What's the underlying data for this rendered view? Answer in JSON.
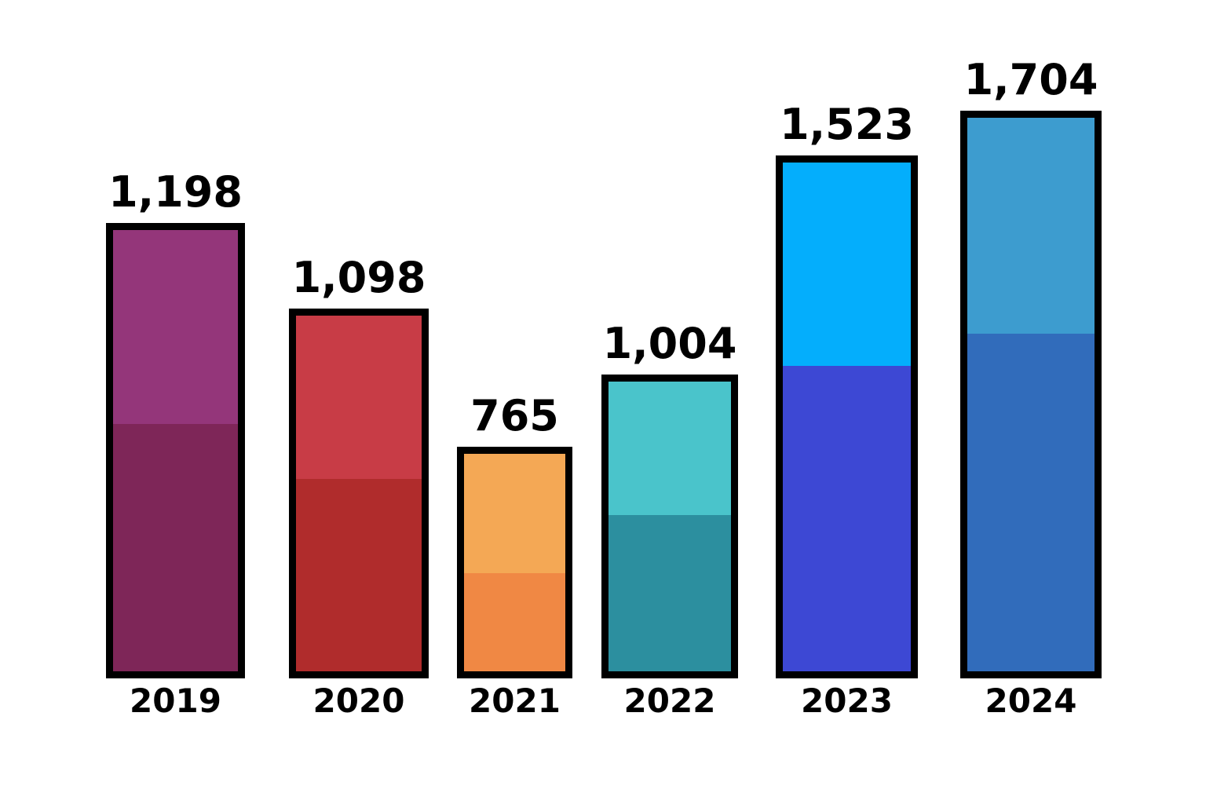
{
  "chart_data": {
    "type": "bar",
    "title": "",
    "xlabel": "",
    "ylabel": "",
    "categories": [
      "2019",
      "2020",
      "2021",
      "2022",
      "2023",
      "2024"
    ],
    "values": [
      1198,
      1098,
      765,
      1004,
      1523,
      1704
    ],
    "value_labels": [
      "1,198",
      "1,098",
      "765",
      "1,004",
      "1,523",
      "1,704"
    ],
    "lower_segment_share": [
      0.56,
      0.54,
      0.45,
      0.54,
      0.6,
      0.61
    ],
    "colors_top": [
      "#94367a",
      "#c83c46",
      "#f4a855",
      "#4ac4cb",
      "#04aefc",
      "#3d9ccf"
    ],
    "colors_bottom": [
      "#7e2658",
      "#b02c2c",
      "#f08844",
      "#2c8f9f",
      "#3d48d4",
      "#316cbb"
    ],
    "ylim": [
      0,
      1800
    ],
    "grid": false,
    "legend": "none"
  }
}
